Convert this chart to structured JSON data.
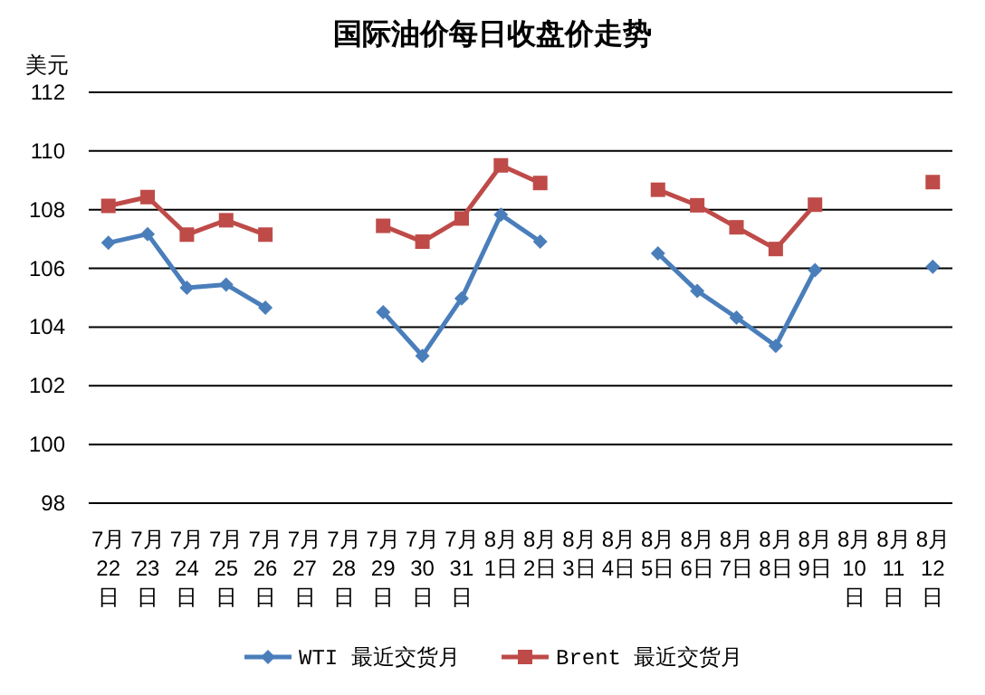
{
  "chart_data": {
    "type": "line",
    "title": "国际油价每日收盘价走势",
    "ylabel": "美元",
    "categories": [
      "7月22日",
      "7月23日",
      "7月24日",
      "7月25日",
      "7月26日",
      "7月27日",
      "7月28日",
      "7月29日",
      "7月30日",
      "7月31日",
      "8月1日",
      "8月2日",
      "8月3日",
      "8月4日",
      "8月5日",
      "8月6日",
      "8月7日",
      "8月8日",
      "8月9日",
      "8月10日",
      "8月11日",
      "8月12日"
    ],
    "series": [
      {
        "name": "WTI 最近交货月",
        "color": "#4a7ebb",
        "marker": "diamond",
        "values": [
          106.87,
          107.17,
          105.34,
          105.45,
          104.66,
          null,
          null,
          104.51,
          103.02,
          104.98,
          107.83,
          106.91,
          null,
          null,
          106.51,
          105.23,
          104.32,
          103.36,
          105.94,
          null,
          null,
          106.06
        ]
      },
      {
        "name": "Brent 最近交货月",
        "color": "#be4b48",
        "marker": "square",
        "values": [
          108.13,
          108.43,
          107.15,
          107.64,
          107.15,
          null,
          null,
          107.45,
          106.91,
          107.7,
          109.51,
          108.91,
          null,
          null,
          108.68,
          108.15,
          107.4,
          106.66,
          108.17,
          null,
          null,
          108.94
        ]
      }
    ],
    "ylim": [
      98,
      112
    ],
    "yticks": [
      98,
      100,
      102,
      104,
      106,
      108,
      110,
      112
    ],
    "grid": "y",
    "legend": "bottom",
    "line_style": "solid"
  }
}
